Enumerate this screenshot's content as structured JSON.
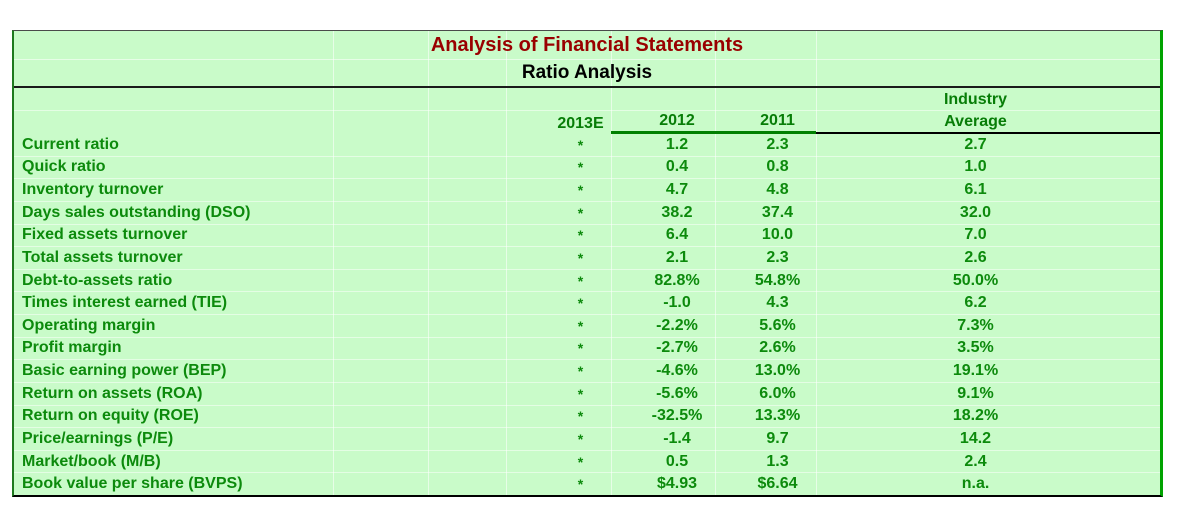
{
  "table": {
    "title": "Analysis of Financial Statements",
    "subtitle": "Ratio Analysis",
    "header": {
      "col_2013": "2013E",
      "col_2012": "2012",
      "col_2011": "2011",
      "industry_line1": "Industry",
      "industry_line2": "Average"
    },
    "rows": [
      {
        "label": "Current ratio",
        "v2013": "*",
        "v2012": "1.2",
        "v2011": "2.3",
        "industry": "2.7"
      },
      {
        "label": "Quick ratio",
        "v2013": "*",
        "v2012": "0.4",
        "v2011": "0.8",
        "industry": "1.0"
      },
      {
        "label": "Inventory turnover",
        "v2013": "*",
        "v2012": "4.7",
        "v2011": "4.8",
        "industry": "6.1"
      },
      {
        "label": "Days sales outstanding (DSO)",
        "v2013": "*",
        "v2012": "38.2",
        "v2011": "37.4",
        "industry": "32.0"
      },
      {
        "label": "Fixed assets turnover",
        "v2013": "*",
        "v2012": "6.4",
        "v2011": "10.0",
        "industry": "7.0"
      },
      {
        "label": "Total assets turnover",
        "v2013": "*",
        "v2012": "2.1",
        "v2011": "2.3",
        "industry": "2.6"
      },
      {
        "label": "Debt-to-assets ratio",
        "v2013": "*",
        "v2012": "82.8%",
        "v2011": "54.8%",
        "industry": "50.0%"
      },
      {
        "label": "Times interest earned (TIE)",
        "v2013": "*",
        "v2012": "-1.0",
        "v2011": "4.3",
        "industry": "6.2"
      },
      {
        "label": "Operating margin",
        "v2013": "*",
        "v2012": "-2.2%",
        "v2011": "5.6%",
        "industry": "7.3%"
      },
      {
        "label": "Profit margin",
        "v2013": "*",
        "v2012": "-2.7%",
        "v2011": "2.6%",
        "industry": "3.5%"
      },
      {
        "label": "Basic earning power (BEP)",
        "v2013": "*",
        "v2012": "-4.6%",
        "v2011": "13.0%",
        "industry": "19.1%"
      },
      {
        "label": "Return on assets (ROA)",
        "v2013": "*",
        "v2012": "-5.6%",
        "v2011": "6.0%",
        "industry": "9.1%"
      },
      {
        "label": "Return on equity (ROE)",
        "v2013": "*",
        "v2012": "-32.5%",
        "v2011": "13.3%",
        "industry": "18.2%"
      },
      {
        "label": "Price/earnings (P/E)",
        "v2013": "*",
        "v2012": "-1.4",
        "v2011": "9.7",
        "industry": "14.2"
      },
      {
        "label": "Market/book (M/B)",
        "v2013": "*",
        "v2012": "0.5",
        "v2011": "1.3",
        "industry": "2.4"
      },
      {
        "label": "Book value per share (BVPS)",
        "v2013": "*",
        "v2012": "$4.93",
        "v2011": "$6.64",
        "industry": "n.a."
      }
    ]
  },
  "colors": {
    "table_background": "#c9fbc9",
    "text_green": "#0c8a0c",
    "title_red": "#990000",
    "subtitle_black": "#000000",
    "left_border_green": "#1e7a1e",
    "right_border_green": "#00a300",
    "header_underline_green": "#008000",
    "header_underline_black": "#000000"
  }
}
